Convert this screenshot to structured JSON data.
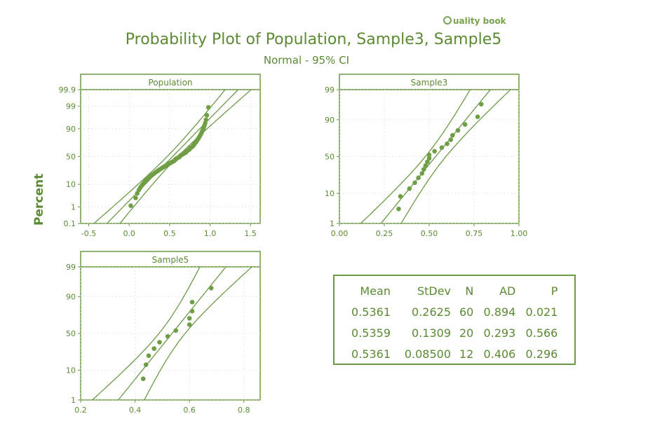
{
  "logo": {
    "text": "uality book"
  },
  "title": "Probability Plot of Population, Sample3, Sample5",
  "subtitle": "Normal - 95% CI",
  "ylabel": "Percent",
  "colors": {
    "primary": "#5b8a32",
    "line": "#6d9a47",
    "points": "#6f9e45",
    "grid": "#cfd9c4"
  },
  "stats_table": {
    "headers": [
      "Mean",
      "StDev",
      "N",
      "AD",
      "P"
    ],
    "rows": [
      [
        "0.5361",
        "0.2625",
        "60",
        "0.894",
        "0.021"
      ],
      [
        "0.5359",
        "0.1309",
        "20",
        "0.293",
        "0.566"
      ],
      [
        "0.5361",
        "0.08500",
        "12",
        "0.406",
        "0.296"
      ]
    ]
  },
  "chart_data": [
    {
      "type": "scatter",
      "title": "Population",
      "xlim": [
        -0.6,
        1.62
      ],
      "xticks": [
        -0.5,
        0.0,
        0.5,
        1.0,
        1.5
      ],
      "xtick_labels": [
        "-0.5",
        "0.0",
        "0.5",
        "1.0",
        "1.5"
      ],
      "yticks": [
        0.1,
        1,
        10,
        50,
        90,
        99,
        99.9
      ],
      "ytick_labels": [
        "0.1",
        "1",
        "10",
        "50",
        "90",
        "99",
        "99.9"
      ],
      "ylim": [
        0.1,
        99.9
      ],
      "mean": 0.5361,
      "stdev": 0.2625,
      "n": 60,
      "points_x": [
        0.02,
        0.08,
        0.1,
        0.12,
        0.14,
        0.16,
        0.18,
        0.2,
        0.22,
        0.24,
        0.26,
        0.28,
        0.3,
        0.32,
        0.34,
        0.36,
        0.38,
        0.4,
        0.42,
        0.44,
        0.46,
        0.48,
        0.5,
        0.52,
        0.54,
        0.56,
        0.57,
        0.58,
        0.6,
        0.62,
        0.63,
        0.64,
        0.66,
        0.68,
        0.7,
        0.71,
        0.72,
        0.74,
        0.75,
        0.76,
        0.78,
        0.79,
        0.8,
        0.81,
        0.82,
        0.83,
        0.84,
        0.85,
        0.86,
        0.87,
        0.88,
        0.89,
        0.9,
        0.91,
        0.92,
        0.93,
        0.94,
        0.95,
        0.96,
        0.98
      ]
    },
    {
      "type": "scatter",
      "title": "Sample3",
      "xlim": [
        0.0,
        1.0
      ],
      "xticks": [
        0.0,
        0.25,
        0.5,
        0.75,
        1.0
      ],
      "xtick_labels": [
        "0.00",
        "0.25",
        "0.50",
        "0.75",
        "1.00"
      ],
      "yticks": [
        1,
        10,
        50,
        90,
        99
      ],
      "ytick_labels": [
        "1",
        "10",
        "50",
        "90",
        "99"
      ],
      "ylim": [
        1,
        99
      ],
      "mean": 0.5359,
      "stdev": 0.1309,
      "n": 20,
      "points_x": [
        0.33,
        0.34,
        0.39,
        0.42,
        0.44,
        0.46,
        0.47,
        0.48,
        0.49,
        0.5,
        0.5,
        0.53,
        0.57,
        0.6,
        0.62,
        0.63,
        0.66,
        0.7,
        0.77,
        0.79
      ]
    },
    {
      "type": "scatter",
      "title": "Sample5",
      "xlim": [
        0.2,
        0.86
      ],
      "xticks": [
        0.2,
        0.4,
        0.6,
        0.8
      ],
      "xtick_labels": [
        "0.2",
        "0.4",
        "0.6",
        "0.8"
      ],
      "yticks": [
        1,
        10,
        50,
        90,
        99
      ],
      "ytick_labels": [
        "1",
        "10",
        "50",
        "90",
        "99"
      ],
      "ylim": [
        1,
        99
      ],
      "mean": 0.5361,
      "stdev": 0.085,
      "n": 12,
      "points_x": [
        0.44,
        0.43,
        0.45,
        0.47,
        0.49,
        0.52,
        0.55,
        0.6,
        0.61,
        0.6,
        0.61,
        0.68
      ]
    }
  ]
}
